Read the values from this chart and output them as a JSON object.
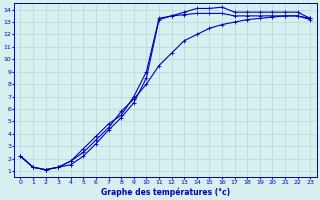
{
  "xlabel": "Graphe des températures (°c)",
  "xlim": [
    -0.5,
    23.5
  ],
  "ylim": [
    0.5,
    14.5
  ],
  "xticks": [
    0,
    1,
    2,
    3,
    4,
    5,
    6,
    7,
    8,
    9,
    10,
    11,
    12,
    13,
    14,
    15,
    16,
    17,
    18,
    19,
    20,
    21,
    22,
    23
  ],
  "yticks": [
    1,
    2,
    3,
    4,
    5,
    6,
    7,
    8,
    9,
    10,
    11,
    12,
    13,
    14
  ],
  "bg_color": "#d6f0f0",
  "grid_color": "#b0d8d8",
  "line_color": "#0000bb",
  "line1_x": [
    0,
    1,
    2,
    3,
    4,
    5,
    6,
    7,
    8,
    9,
    10,
    11,
    12,
    13,
    14,
    15,
    16,
    17,
    18,
    19,
    20,
    21,
    22,
    23
  ],
  "line1_y": [
    2.2,
    1.3,
    1.1,
    1.3,
    1.5,
    2.2,
    3.2,
    4.3,
    5.3,
    6.5,
    8.5,
    13.2,
    13.5,
    13.8,
    14.1,
    14.1,
    14.2,
    13.8,
    13.8,
    13.8,
    13.8,
    13.8,
    13.8,
    13.3
  ],
  "line2_x": [
    0,
    1,
    2,
    3,
    4,
    5,
    6,
    7,
    8,
    9,
    10,
    11,
    12,
    13,
    14,
    15,
    16,
    17,
    18,
    19,
    20,
    21,
    22,
    23
  ],
  "line2_y": [
    2.2,
    1.3,
    1.1,
    1.3,
    1.8,
    2.8,
    3.8,
    4.8,
    5.5,
    7.0,
    9.0,
    13.3,
    13.5,
    13.6,
    13.7,
    13.7,
    13.7,
    13.5,
    13.5,
    13.5,
    13.5,
    13.5,
    13.5,
    13.2
  ],
  "line3_x": [
    0,
    1,
    2,
    3,
    4,
    5,
    6,
    7,
    8,
    9,
    10,
    11,
    12,
    13,
    14,
    15,
    16,
    17,
    18,
    19,
    20,
    21,
    22,
    23
  ],
  "line3_y": [
    2.2,
    1.3,
    1.1,
    1.3,
    1.8,
    2.5,
    3.5,
    4.5,
    5.8,
    6.8,
    8.0,
    9.5,
    10.5,
    11.5,
    12.0,
    12.5,
    12.8,
    13.0,
    13.2,
    13.3,
    13.4,
    13.5,
    13.5,
    13.3
  ]
}
